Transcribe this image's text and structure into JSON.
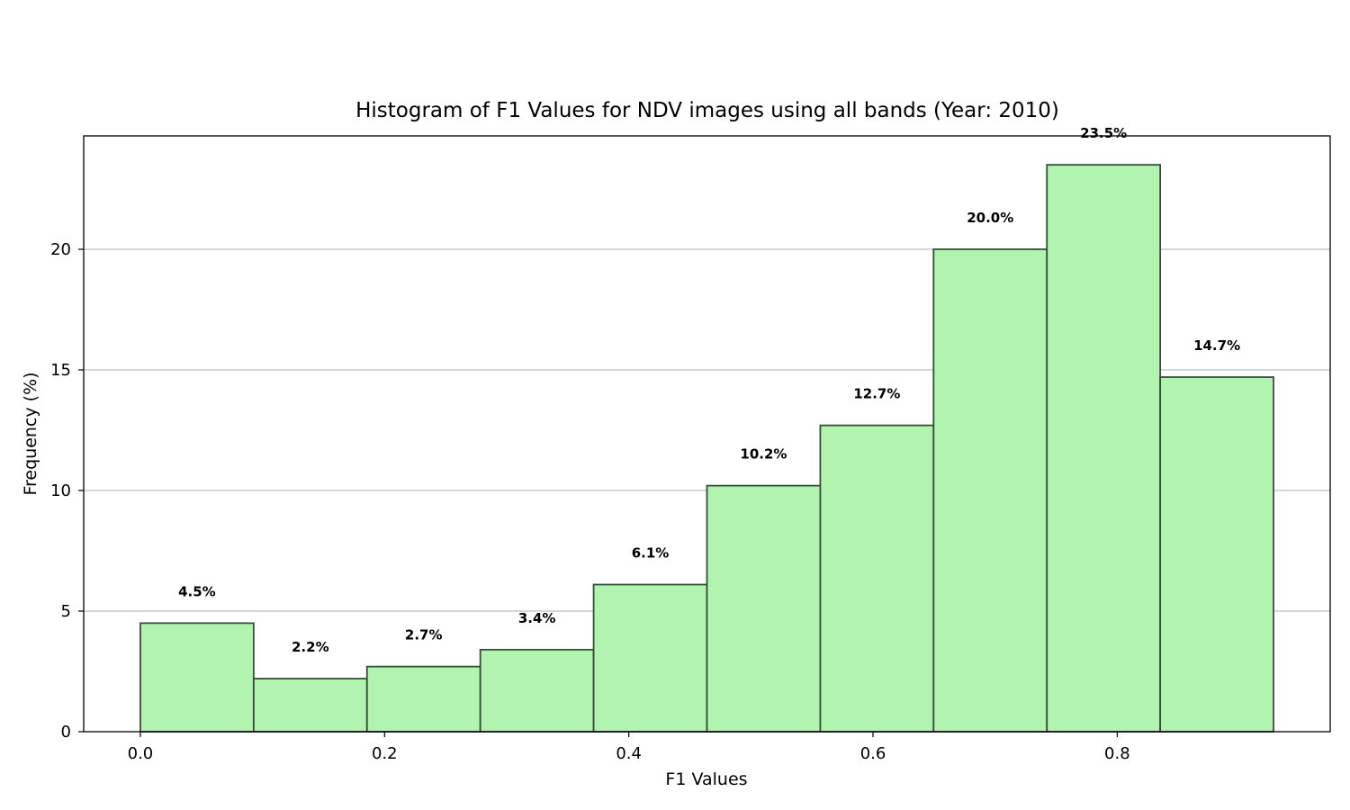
{
  "chart_data": {
    "type": "bar",
    "title": "Histogram of F1 Values for NDV images using all bands (Year: 2010)",
    "xlabel": "F1 Values",
    "ylabel": "Frequency (%)",
    "xlim": [
      -0.0464,
      0.9744
    ],
    "ylim": [
      0,
      24.7
    ],
    "xticks": [
      0.0,
      0.2,
      0.4,
      0.6,
      0.8
    ],
    "xtick_labels": [
      "0.0",
      "0.2",
      "0.4",
      "0.6",
      "0.8"
    ],
    "yticks": [
      0,
      5,
      10,
      15,
      20
    ],
    "ytick_labels": [
      "0",
      "5",
      "10",
      "15",
      "20"
    ],
    "bin_edges": [
      0.0,
      0.0928,
      0.1856,
      0.2784,
      0.3712,
      0.464,
      0.5568,
      0.6496,
      0.7424,
      0.8352,
      0.928
    ],
    "values": [
      4.5,
      2.2,
      2.7,
      3.4,
      6.1,
      10.2,
      12.7,
      20.0,
      23.5,
      14.7
    ],
    "data_labels": [
      "4.5%",
      "2.2%",
      "2.7%",
      "3.4%",
      "6.1%",
      "10.2%",
      "12.7%",
      "20.0%",
      "23.5%",
      "14.7%"
    ],
    "grid": "y",
    "colors": {
      "bar_fill": "#b0f4b0",
      "bar_edge": "#3a4a3e",
      "grid": "#c8c8c8",
      "axis": "#000000"
    }
  }
}
